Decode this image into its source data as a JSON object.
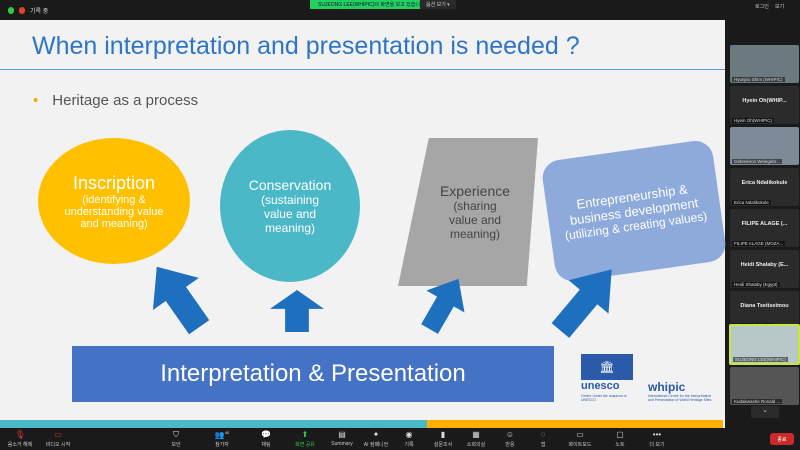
{
  "topbar": {
    "recording": "기록 중",
    "share_notice": "SUJEONG LEE(WHIPIC)의 화면을 보고 있습니다",
    "view_options": "옵션 보기",
    "sign_in": "로그인",
    "view": "보기"
  },
  "slide": {
    "title": "When interpretation and presentation is needed ?",
    "bullet": "Heritage as a process",
    "shapes": [
      {
        "title": "Inscription",
        "text": "(identifying & understanding value and meaning)",
        "color": "#ffc000"
      },
      {
        "title": "Conservation",
        "text": "(sustaining value and meaning)",
        "color": "#4bb8c8"
      },
      {
        "title": "Experience",
        "text": "(sharing value and meaning)",
        "color": "#a6a6a6"
      },
      {
        "title": "Entrepreneurship & business development",
        "text": "(utilizing & creating values)",
        "color": "#8eaadb"
      }
    ],
    "banner": "Interpretation & Presentation",
    "logos": {
      "unesco": "unesco",
      "unesco_sub": "Centre Under the auspices of UNESCO",
      "whipic": "whipic",
      "whipic_sub": "International Centre for the Interpretation and Presentation of World Heritage Sites"
    }
  },
  "participants": [
    {
      "name": "",
      "label": "Hyunjoo Shim (WHIPIC)",
      "video": true
    },
    {
      "name": "Hyein Oh(WHIP...",
      "label": "Hyein Oh(WHIPIC)",
      "video": false
    },
    {
      "name": "",
      "label": "Gebrekiros Welegebr...",
      "video": true
    },
    {
      "name": "Erica Ndalikokule",
      "label": "Erica Ndalikokule",
      "video": false
    },
    {
      "name": "FILIPE ALAGE (...",
      "label": "FILIPE ALAGE (MOZA...",
      "video": false
    },
    {
      "name": "Heidi Shalaby (E...",
      "label": "Heidi Shalaby (Egypt)",
      "video": false
    },
    {
      "name": "Diana Tseitseimou",
      "label": "Diana Tseitseimou",
      "video": false
    },
    {
      "name": "",
      "label": "SUJEONG LEE(WHIPIC)",
      "video": true,
      "active": true
    },
    {
      "name": "",
      "label": "Kudakwashe Ronald ...",
      "video": true
    }
  ],
  "toolbar": {
    "unmute": "음소거 해제",
    "start_video": "비디오 시작",
    "security": "보안",
    "participants": "참가자",
    "participant_count": "40",
    "chat": "채팅",
    "share_screen": "화면 공유",
    "summary": "Summary",
    "ai": "AI 컴패니언",
    "record": "기록",
    "polls": "설문조사",
    "breakout": "소회의실",
    "reactions": "반응",
    "apps": "앱",
    "whiteboard": "화이트보드",
    "notes": "노트",
    "more": "더 보기",
    "end": "종료"
  }
}
